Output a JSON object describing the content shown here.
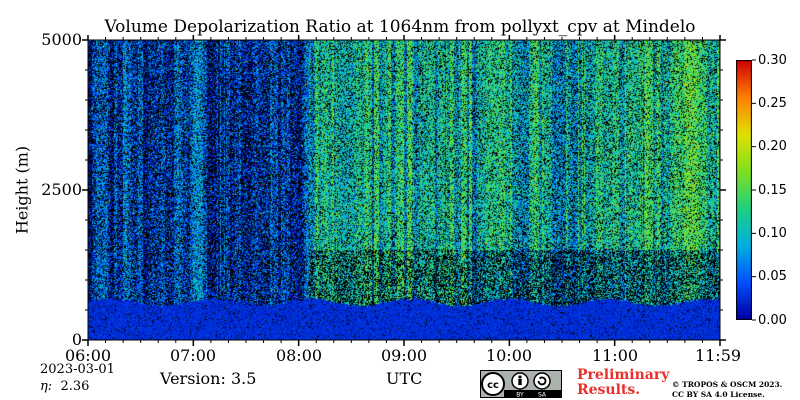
{
  "chart_data": {
    "type": "heatmap",
    "title": "Volume Depolarization Ratio at 1064nm from pollyxt_cpv at Mindelo",
    "xlabel": "UTC",
    "ylabel": "Height (m)",
    "x_range": [
      "06:00",
      "11:59"
    ],
    "y_range": [
      0,
      5000
    ],
    "x_ticks": [
      "06:00",
      "07:00",
      "08:00",
      "09:00",
      "10:00",
      "11:00",
      "11:59"
    ],
    "y_ticks": [
      "0",
      "2500",
      "5000"
    ],
    "colorbar": {
      "range": [
        0.0,
        0.3
      ],
      "ticks": [
        "0.00",
        "0.05",
        "0.10",
        "0.15",
        "0.20",
        "0.25",
        "0.30"
      ],
      "colormap": [
        "#0000a0",
        "#0050ff",
        "#00b0e0",
        "#20d080",
        "#80e020",
        "#e0e000",
        "#ff8000",
        "#d00000"
      ]
    },
    "features": {
      "boundary_layer_top_m": 600,
      "boundary_layer_ratio": 0.02,
      "above_layer_ratio_range": [
        0.0,
        0.15
      ]
    }
  },
  "footer": {
    "date": "2023-03-01",
    "eta_label": "η:",
    "eta_value": "2.36",
    "version": "Version: 3.5",
    "x_unit": "UTC",
    "license_badge": [
      "cc",
      "BY",
      "SA"
    ],
    "preliminary_line1": "Preliminary",
    "preliminary_line2": "Results.",
    "copyright_line1": "© TROPOS & OSCM 2023.",
    "copyright_line2": "CC BY SA 4.0 License."
  },
  "colors": {
    "preliminary": "#e8302a"
  }
}
